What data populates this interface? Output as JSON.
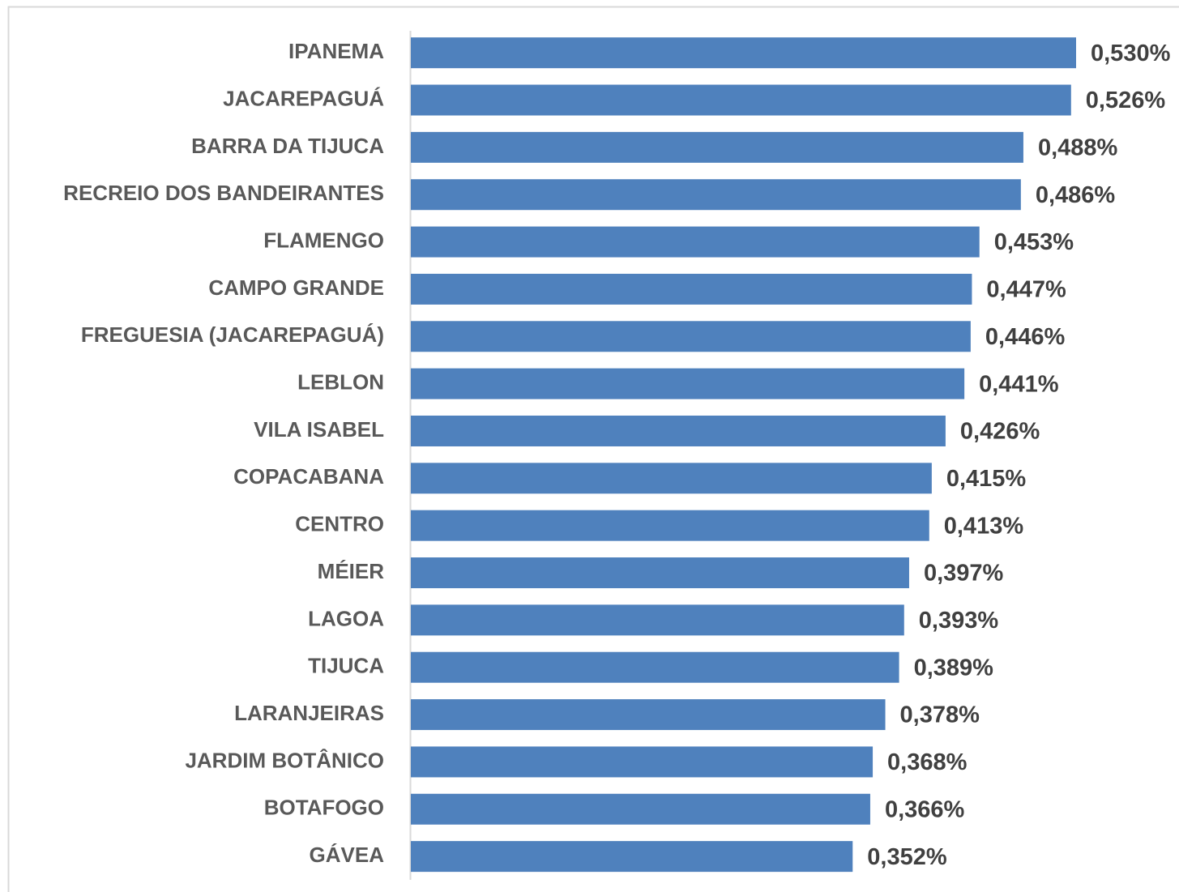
{
  "chart_data": {
    "type": "bar",
    "orientation": "horizontal",
    "color": "#4f81bd",
    "categories": [
      "IPANEMA",
      "JACAREPAGUÁ",
      "BARRA DA TIJUCA",
      "RECREIO DOS BANDEIRANTES",
      "FLAMENGO",
      "CAMPO GRANDE",
      "FREGUESIA (JACAREPAGUÁ)",
      "LEBLON",
      "VILA ISABEL",
      "COPACABANA",
      "CENTRO",
      "MÉIER",
      "LAGOA",
      "TIJUCA",
      "LARANJEIRAS",
      "JARDIM BOTÂNICO",
      "BOTAFOGO",
      "GÁVEA"
    ],
    "values": [
      0.53,
      0.526,
      0.488,
      0.486,
      0.453,
      0.447,
      0.446,
      0.441,
      0.426,
      0.415,
      0.413,
      0.397,
      0.393,
      0.389,
      0.378,
      0.368,
      0.366,
      0.352
    ],
    "value_labels": [
      "0,530%",
      "0,526%",
      "0,488%",
      "0,486%",
      "0,453%",
      "0,447%",
      "0,446%",
      "0,441%",
      "0,426%",
      "0,415%",
      "0,413%",
      "0,397%",
      "0,393%",
      "0,389%",
      "0,378%",
      "0,368%",
      "0,366%",
      "0,352%"
    ]
  }
}
